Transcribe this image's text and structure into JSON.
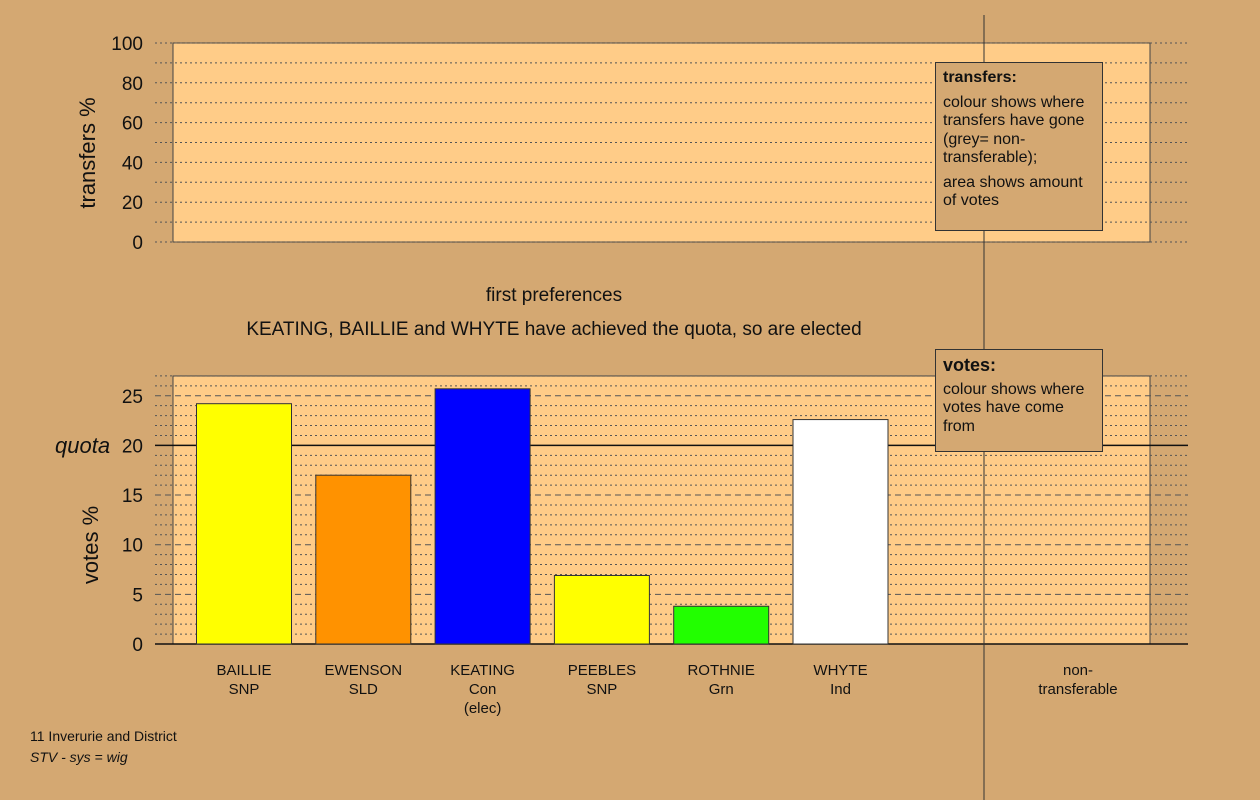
{
  "chart_data": [
    {
      "type": "bar",
      "title": "",
      "ylabel": "transfers %",
      "ylim": [
        0,
        100
      ],
      "yticks": [
        0,
        20,
        40,
        60,
        80,
        100
      ],
      "values": []
    },
    {
      "type": "bar",
      "title": "first preferences",
      "subtitle": "KEATING, BAILLIE and WHYTE have achieved the quota, so are elected",
      "ylabel": "votes %",
      "ylim": [
        0,
        27
      ],
      "yticks": [
        0,
        5,
        10,
        15,
        20,
        25
      ],
      "quota": 20,
      "quota_label": "quota",
      "categories": [
        [
          "BAILLIE",
          "SNP"
        ],
        [
          "EWENSON",
          "SLD"
        ],
        [
          "KEATING",
          "Con",
          "(elec)"
        ],
        [
          "PEEBLES",
          "SNP"
        ],
        [
          "ROTHNIE",
          "Grn"
        ],
        [
          "WHYTE",
          "Ind"
        ]
      ],
      "values": [
        24.2,
        17.0,
        25.7,
        6.9,
        3.8,
        22.6
      ],
      "colors": [
        "#ffff00",
        "#ff9200",
        "#0000ff",
        "#ffff00",
        "#22ff00",
        "#ffffff"
      ],
      "extra_category": [
        "non-",
        "transferable"
      ]
    }
  ],
  "legend_transfers": {
    "heading": "transfers:",
    "line1": "colour shows where transfers have gone (grey= non-transferable);",
    "line2": "area shows amount of votes"
  },
  "legend_votes": {
    "heading": "votes:",
    "line1": "colour shows where votes have come from"
  },
  "footer": {
    "ward": "11 Inverurie and District",
    "system": "STV - sys = wig"
  }
}
